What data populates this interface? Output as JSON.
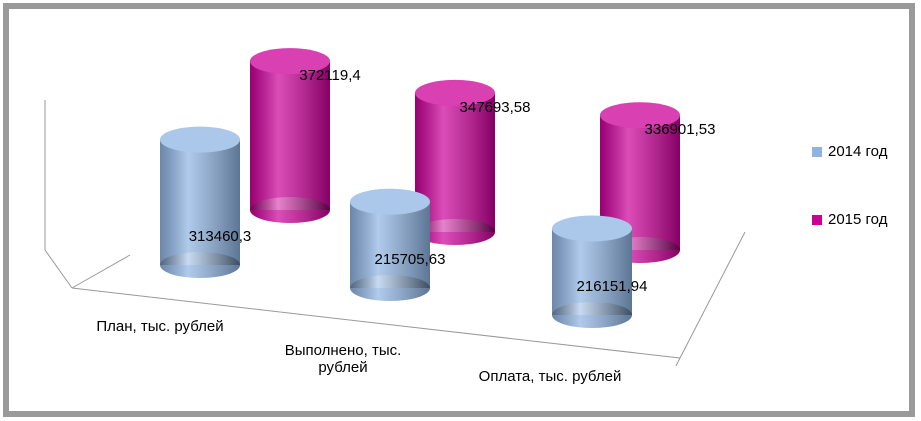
{
  "chart_data": {
    "type": "bar",
    "categories": [
      "План, тыс. рублей",
      "Выполнено, тыс. рублей",
      "Оплата, тыс. рублей"
    ],
    "series": [
      {
        "name": "2014 год",
        "color": "#8fb4e3",
        "values": [
          313460.3,
          215705.63,
          216151.94
        ],
        "value_labels": [
          "313460,3",
          "215705,63",
          "216151,94"
        ]
      },
      {
        "name": "2015 год",
        "color": "#cc0099",
        "values": [
          372119.4,
          347693.58,
          336901.53
        ],
        "value_labels": [
          "372119,4",
          "347693,58",
          "336901,53"
        ]
      }
    ],
    "ylim": [
      0,
      400000
    ],
    "legend": "right"
  }
}
